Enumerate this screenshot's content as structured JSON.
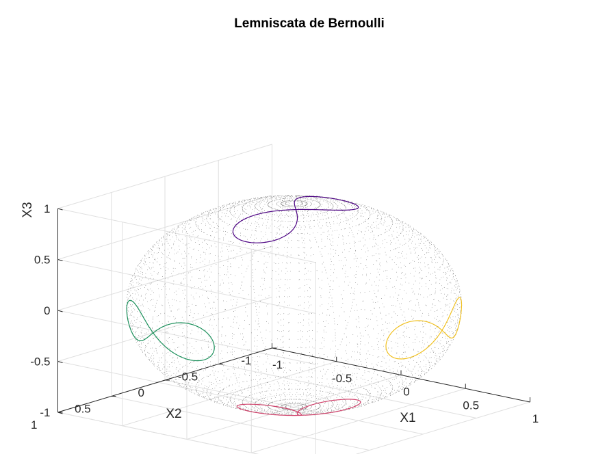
{
  "chart_data": {
    "type": "line",
    "title": "Lemniscata de Bernoulli",
    "xlabel": "X1",
    "ylabel": "X2",
    "zlabel": "X3",
    "xlim": [
      -1,
      1
    ],
    "ylim": [
      -1,
      1
    ],
    "zlim": [
      -1,
      1
    ],
    "x_ticks": [
      "-1",
      "-0.5",
      "0",
      "0.5",
      "1"
    ],
    "y_ticks": [
      "-1",
      "-0.5",
      "0",
      "0.5",
      "1"
    ],
    "z_ticks": [
      "-1",
      "-0.5",
      "0",
      "0.5",
      "1"
    ],
    "grid": true,
    "view": "3d-box",
    "background_surface": {
      "type": "dotted unit sphere",
      "color": "#000000"
    },
    "series": [
      {
        "color": "#4b0082",
        "lemniscate_center": [
          0.05,
          0.05,
          0.55
        ],
        "note": ""
      },
      {
        "color": "#1a8f5a",
        "lemniscate_center": [
          -0.3,
          0.95,
          -0.05
        ],
        "note": ""
      },
      {
        "color": "#d0406a",
        "lemniscate_center": [
          0.25,
          0.25,
          -0.95
        ],
        "note": ""
      },
      {
        "color": "#f0c020",
        "lemniscate_center": [
          0.95,
          -0.2,
          -0.05
        ],
        "note": ""
      }
    ]
  }
}
